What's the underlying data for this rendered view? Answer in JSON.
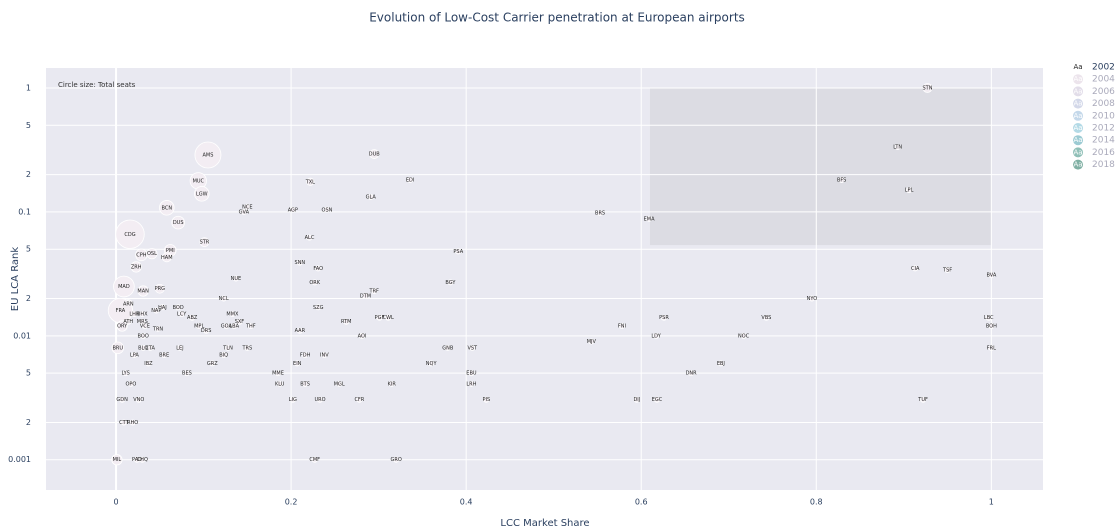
{
  "chart_data": {
    "type": "scatter",
    "title": "Evolution of Low-Cost Carrier penetration at European airports",
    "x_label": "LCC Market Share",
    "y_label": "EU LCA Rank",
    "annotation": "Circle size: Total seats",
    "xlim": [
      -0.08,
      1.059
    ],
    "xticks": [
      0,
      0.2,
      0.4,
      0.6,
      0.8,
      1
    ],
    "ylim": [
      0.00057,
      1.45
    ],
    "log_y": true,
    "grid": true,
    "legend": "right",
    "yticks": [
      0.001,
      {
        "value": 0.002,
        "label": "2"
      },
      {
        "value": 0.005,
        "label": "5"
      },
      0.01,
      {
        "value": 0.02,
        "label": "2"
      },
      {
        "value": 0.05,
        "label": "5"
      },
      0.1,
      {
        "value": 0.2,
        "label": "2"
      },
      {
        "value": 0.5,
        "label": "5"
      },
      1
    ],
    "shapes": [
      {
        "x0": 0.61,
        "x1": 1,
        "y0": 0.054,
        "y1": 1,
        "color": "#dcdce3"
      }
    ],
    "series": [
      {
        "name": "2002",
        "color": "#f3edf3",
        "labels": [
          "STN",
          "LTN",
          "BFS",
          "LPL",
          "DUB",
          "EDI",
          "AMS",
          "MUC",
          "TXL",
          "LGW",
          "GLA",
          "BCN",
          "NCE",
          "GVA",
          "AGP",
          "OSN",
          "BRS",
          "EMA",
          "DUS",
          "CDG",
          "ALC",
          "STR",
          "PMI",
          "CPH",
          "OSL",
          "HAM",
          "PSA",
          "SNN",
          "ZRH",
          "FAO",
          "CIA",
          "TSF",
          "BVA",
          "NUE",
          "ORK",
          "BGY",
          "MAD",
          "PRG",
          "MAN",
          "TRF",
          "DTM",
          "NCL",
          "NYO",
          "ARN",
          "SZG",
          "HAJ",
          "BOD",
          "FRA",
          "NAP",
          "LHR",
          "BHX",
          "LCY",
          "MMX",
          "ABZ",
          "PSR",
          "VBS",
          "LBC",
          "PGF",
          "CWL",
          "RTM",
          "ATH",
          "MRS",
          "SXF",
          "ORY",
          "VCE",
          "MPL",
          "GOA",
          "LBA",
          "THF",
          "FNI",
          "BOH",
          "TRN",
          "DRS",
          "AAR",
          "BOO",
          "AOI",
          "LDY",
          "NOC",
          "MJV",
          "BRU",
          "BLQ",
          "CTA",
          "LEJ",
          "TLN",
          "TRS",
          "GNB",
          "VST",
          "FRL",
          "LPA",
          "BRE",
          "BIQ",
          "FDH",
          "INV",
          "IBZ",
          "GRZ",
          "EIN",
          "NQY",
          "EBJ",
          "LYS",
          "BES",
          "MME",
          "EBU",
          "DNR",
          "OPO",
          "KLU",
          "BTS",
          "MGL",
          "KIR",
          "LRH",
          "GDN",
          "VNO",
          "LIG",
          "URO",
          "CFR",
          "PIS",
          "DIJ",
          "EGC",
          "TUF",
          "CTT",
          "RHO",
          "MIL",
          "PAD",
          "CHQ",
          "CMF",
          "GRO"
        ],
        "x": [
          0.927,
          0.893,
          0.829,
          0.906,
          0.295,
          0.336,
          0.105,
          0.094,
          0.222,
          0.098,
          0.291,
          0.058,
          0.15,
          0.146,
          0.202,
          0.241,
          0.553,
          0.609,
          0.071,
          0.016,
          0.221,
          0.101,
          0.062,
          0.029,
          0.041,
          0.058,
          0.391,
          0.21,
          0.023,
          0.231,
          0.913,
          0.95,
          1.0,
          0.137,
          0.227,
          0.382,
          0.009,
          0.05,
          0.031,
          0.295,
          0.285,
          0.123,
          0.795,
          0.014,
          0.231,
          0.053,
          0.071,
          0.005,
          0.046,
          0.021,
          0.03,
          0.075,
          0.133,
          0.087,
          0.626,
          0.743,
          0.997,
          0.301,
          0.311,
          0.263,
          0.014,
          0.03,
          0.141,
          0.007,
          0.033,
          0.095,
          0.126,
          0.135,
          0.154,
          0.578,
          1.0,
          0.048,
          0.103,
          0.21,
          0.031,
          0.281,
          0.617,
          0.717,
          0.543,
          0.002,
          0.031,
          0.039,
          0.073,
          0.128,
          0.15,
          0.379,
          0.407,
          1.0,
          0.021,
          0.055,
          0.123,
          0.216,
          0.238,
          0.037,
          0.11,
          0.207,
          0.36,
          0.691,
          0.011,
          0.081,
          0.185,
          0.406,
          0.657,
          0.017,
          0.187,
          0.216,
          0.255,
          0.315,
          0.406,
          0.007,
          0.026,
          0.202,
          0.233,
          0.278,
          0.423,
          0.595,
          0.618,
          0.922,
          0.009,
          0.019,
          0.001,
          0.024,
          0.03,
          0.227,
          0.32
        ],
        "y": [
          1.0,
          0.334,
          0.181,
          0.15,
          0.293,
          0.181,
          0.288,
          0.178,
          0.175,
          0.14,
          0.132,
          0.108,
          0.11,
          0.1,
          0.104,
          0.104,
          0.098,
          0.088,
          0.082,
          0.066,
          0.062,
          0.057,
          0.049,
          0.045,
          0.046,
          0.043,
          0.048,
          0.039,
          0.036,
          0.035,
          0.035,
          0.034,
          0.031,
          0.029,
          0.027,
          0.027,
          0.025,
          0.024,
          0.023,
          0.023,
          0.021,
          0.02,
          0.02,
          0.018,
          0.017,
          0.017,
          0.017,
          0.016,
          0.016,
          0.015,
          0.015,
          0.015,
          0.015,
          0.014,
          0.014,
          0.014,
          0.014,
          0.014,
          0.014,
          0.013,
          0.013,
          0.013,
          0.013,
          0.012,
          0.012,
          0.012,
          0.012,
          0.012,
          0.012,
          0.012,
          0.012,
          0.0114,
          0.011,
          0.011,
          0.01,
          0.01,
          0.01,
          0.01,
          0.009,
          0.008,
          0.008,
          0.008,
          0.008,
          0.008,
          0.008,
          0.008,
          0.008,
          0.008,
          0.007,
          0.007,
          0.007,
          0.007,
          0.007,
          0.006,
          0.006,
          0.006,
          0.006,
          0.006,
          0.005,
          0.005,
          0.005,
          0.005,
          0.005,
          0.0041,
          0.0041,
          0.0041,
          0.0041,
          0.0041,
          0.0041,
          0.00305,
          0.00305,
          0.00305,
          0.00305,
          0.00305,
          0.00305,
          0.00305,
          0.00305,
          0.00305,
          0.002,
          0.002,
          0.001,
          0.001,
          0.001,
          0.001,
          0.001
        ],
        "sizes": [
          3,
          1,
          1,
          1,
          3,
          1,
          25,
          10,
          2,
          8,
          1,
          8,
          1,
          1,
          1,
          1,
          1,
          1,
          6,
          30,
          1,
          3,
          5,
          5,
          4,
          3,
          1,
          1,
          4,
          1,
          1,
          1,
          1,
          1,
          1,
          1,
          16,
          3,
          4,
          1,
          1,
          1,
          1,
          3,
          1,
          1,
          1,
          22,
          1,
          1,
          1,
          1,
          1,
          1,
          1,
          1,
          1,
          1,
          1,
          1,
          1,
          1,
          1,
          4,
          1,
          1,
          1,
          1,
          1,
          1,
          1,
          1,
          1,
          1,
          1,
          1,
          1,
          1,
          1,
          5,
          1,
          1,
          1,
          1,
          1,
          1,
          1,
          1,
          1,
          1,
          1,
          1,
          1,
          1,
          1,
          1,
          1,
          1,
          1,
          1,
          1,
          1,
          1,
          1,
          1,
          1,
          1,
          1,
          1,
          1,
          1,
          1,
          1,
          1,
          1,
          1,
          1,
          1,
          1,
          1,
          4,
          1,
          1,
          1,
          1
        ]
      },
      {
        "name": "2004",
        "color": "#ece4ec",
        "visible": "legendonly"
      },
      {
        "name": "2006",
        "color": "#e2dde9",
        "visible": "legendonly"
      },
      {
        "name": "2008",
        "color": "#d3d8e9",
        "visible": "legendonly"
      },
      {
        "name": "2010",
        "color": "#c4d8ea",
        "visible": "legendonly"
      },
      {
        "name": "2012",
        "color": "#b3dae6",
        "visible": "legendonly"
      },
      {
        "name": "2014",
        "color": "#9ccbd3",
        "visible": "legendonly"
      },
      {
        "name": "2016",
        "color": "#8fbfb7",
        "visible": "legendonly"
      },
      {
        "name": "2018",
        "color": "#80b0a4",
        "visible": "legendonly"
      }
    ]
  }
}
